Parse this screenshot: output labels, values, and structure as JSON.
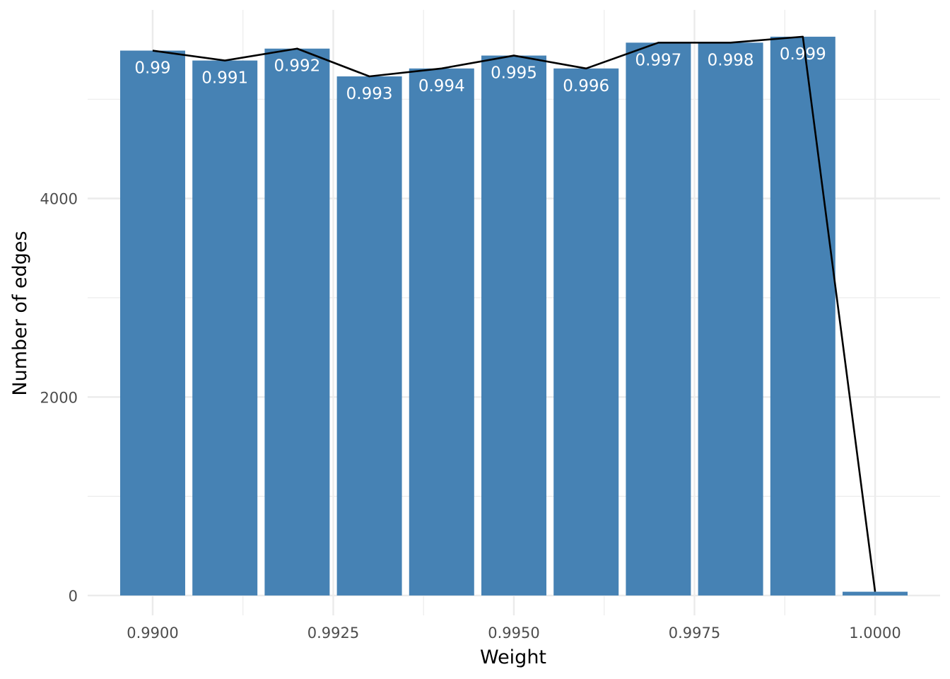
{
  "chart_data": {
    "type": "bar",
    "xlabel": "Weight",
    "ylabel": "Number of edges",
    "xlim": [
      0.9891,
      1.0009
    ],
    "ylim": [
      -200,
      5900
    ],
    "x_ticks": [
      {
        "value": 0.99,
        "label": "0.9900"
      },
      {
        "value": 0.9925,
        "label": "0.9925"
      },
      {
        "value": 0.995,
        "label": "0.9950"
      },
      {
        "value": 0.9975,
        "label": "0.9975"
      },
      {
        "value": 1.0,
        "label": "1.0000"
      }
    ],
    "y_ticks": [
      {
        "value": 0,
        "label": "0"
      },
      {
        "value": 2000,
        "label": "2000"
      },
      {
        "value": 4000,
        "label": "4000"
      }
    ],
    "bar_width": 0.0009,
    "bars": [
      {
        "x": 0.99,
        "value": 5490,
        "label": "0.99"
      },
      {
        "x": 0.991,
        "value": 5390,
        "label": "0.991"
      },
      {
        "x": 0.992,
        "value": 5510,
        "label": "0.992"
      },
      {
        "x": 0.993,
        "value": 5230,
        "label": "0.993"
      },
      {
        "x": 0.994,
        "value": 5310,
        "label": "0.994"
      },
      {
        "x": 0.995,
        "value": 5440,
        "label": "0.995"
      },
      {
        "x": 0.996,
        "value": 5310,
        "label": "0.996"
      },
      {
        "x": 0.997,
        "value": 5570,
        "label": "0.997"
      },
      {
        "x": 0.998,
        "value": 5570,
        "label": "0.998"
      },
      {
        "x": 0.999,
        "value": 5630,
        "label": "0.999"
      },
      {
        "x": 1.0,
        "value": 38,
        "label": ""
      }
    ],
    "line": {
      "x": [
        0.99,
        0.991,
        0.992,
        0.993,
        0.994,
        0.995,
        0.996,
        0.997,
        0.998,
        0.999,
        1.0
      ],
      "y": [
        5490,
        5390,
        5510,
        5230,
        5310,
        5440,
        5310,
        5570,
        5570,
        5630,
        38
      ]
    },
    "grid": true,
    "legend": "none",
    "colors": {
      "bar": "#4682b4",
      "line": "#000000",
      "grid": "#ebebeb",
      "bar_label": "#ffffff"
    }
  }
}
